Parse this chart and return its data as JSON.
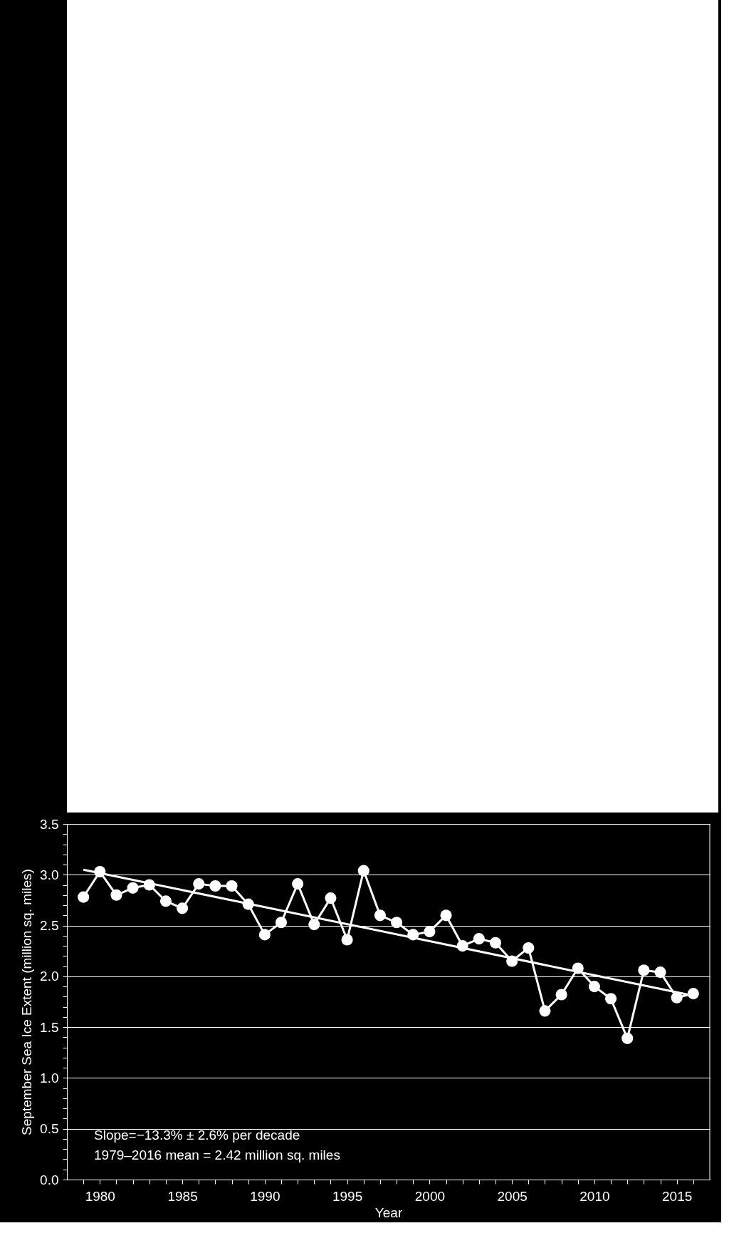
{
  "chart_data": {
    "type": "line",
    "xlabel": "Year",
    "ylabel": "September Sea Ice Extent (million sq. miles)",
    "x": [
      1979,
      1980,
      1981,
      1982,
      1983,
      1984,
      1985,
      1986,
      1987,
      1988,
      1989,
      1990,
      1991,
      1992,
      1993,
      1994,
      1995,
      1996,
      1997,
      1998,
      1999,
      2000,
      2001,
      2002,
      2003,
      2004,
      2005,
      2006,
      2007,
      2008,
      2009,
      2010,
      2011,
      2012,
      2013,
      2014,
      2015,
      2016
    ],
    "series": [
      {
        "color": "#ffffff",
        "values": [
          2.78,
          3.03,
          2.8,
          2.87,
          2.9,
          2.74,
          2.67,
          2.91,
          2.89,
          2.89,
          2.71,
          2.41,
          2.53,
          2.91,
          2.51,
          2.77,
          2.36,
          3.04,
          2.6,
          2.53,
          2.41,
          2.44,
          2.6,
          2.3,
          2.37,
          2.33,
          2.15,
          2.28,
          1.66,
          1.82,
          2.08,
          1.9,
          1.78,
          1.39,
          2.06,
          2.04,
          1.79,
          1.83
        ]
      },
      {
        "type": "line",
        "x": [
          1979,
          2016
        ],
        "values": [
          3.05,
          1.81
        ],
        "color": "#ffffff",
        "marker": "none"
      }
    ],
    "marker": "circle",
    "line_style": "solid",
    "xlim": [
      1978,
      2017
    ],
    "xticks": [
      {
        "value": 1979,
        "label": null
      },
      1980,
      {
        "value": 1981,
        "label": null
      },
      {
        "value": 1982,
        "label": null
      },
      {
        "value": 1983,
        "label": null
      },
      {
        "value": 1984,
        "label": null
      },
      1985,
      {
        "value": 1986,
        "label": null
      },
      {
        "value": 1987,
        "label": null
      },
      {
        "value": 1988,
        "label": null
      },
      {
        "value": 1989,
        "label": null
      },
      1990,
      {
        "value": 1991,
        "label": null
      },
      {
        "value": 1992,
        "label": null
      },
      {
        "value": 1993,
        "label": null
      },
      {
        "value": 1994,
        "label": null
      },
      1995,
      {
        "value": 1996,
        "label": null
      },
      {
        "value": 1997,
        "label": null
      },
      {
        "value": 1998,
        "label": null
      },
      {
        "value": 1999,
        "label": null
      },
      2000,
      {
        "value": 2001,
        "label": null
      },
      {
        "value": 2002,
        "label": null
      },
      {
        "value": 2003,
        "label": null
      },
      {
        "value": 2004,
        "label": null
      },
      2005,
      {
        "value": 2006,
        "label": null
      },
      {
        "value": 2007,
        "label": null
      },
      {
        "value": 2008,
        "label": null
      },
      {
        "value": 2009,
        "label": null
      },
      2010,
      {
        "value": 2011,
        "label": null
      },
      {
        "value": 2012,
        "label": null
      },
      {
        "value": 2013,
        "label": null
      },
      {
        "value": 2014,
        "label": null
      },
      2015,
      {
        "value": 2016,
        "label": null
      }
    ],
    "ylim": [
      0,
      3.5
    ],
    "yticks": [
      {
        "value": 0,
        "label": "0.0"
      },
      {
        "value": 0.1,
        "label": null
      },
      {
        "value": 0.2,
        "label": null
      },
      {
        "value": 0.3,
        "label": null
      },
      {
        "value": 0.4,
        "label": null
      },
      0.5,
      {
        "value": 0.6,
        "label": null
      },
      {
        "value": 0.7,
        "label": null
      },
      {
        "value": 0.8,
        "label": null
      },
      {
        "value": 0.9,
        "label": null
      },
      {
        "value": 1,
        "label": "1.0"
      },
      {
        "value": 1.1,
        "label": null
      },
      {
        "value": 1.2,
        "label": null
      },
      {
        "value": 1.3,
        "label": null
      },
      {
        "value": 1.4,
        "label": null
      },
      1.5,
      {
        "value": 1.6,
        "label": null
      },
      {
        "value": 1.7,
        "label": null
      },
      {
        "value": 1.8,
        "label": null
      },
      {
        "value": 1.9,
        "label": null
      },
      {
        "value": 2,
        "label": "2.0"
      },
      {
        "value": 2.1,
        "label": null
      },
      {
        "value": 2.2,
        "label": null
      },
      {
        "value": 2.3,
        "label": null
      },
      {
        "value": 2.4,
        "label": null
      },
      2.5,
      {
        "value": 2.6,
        "label": null
      },
      {
        "value": 2.7,
        "label": null
      },
      {
        "value": 2.8,
        "label": null
      },
      {
        "value": 2.9,
        "label": null
      },
      {
        "value": 3,
        "label": "3.0"
      },
      {
        "value": 3.1,
        "label": null
      },
      {
        "value": 3.2,
        "label": null
      },
      {
        "value": 3.3,
        "label": null
      },
      {
        "value": 3.4,
        "label": null
      },
      3.5
    ],
    "grid": "y",
    "annotations": [
      "Slope=−13.3% ± 2.6% per decade",
      "1979–2016 mean = 2.42 million sq. miles"
    ]
  }
}
